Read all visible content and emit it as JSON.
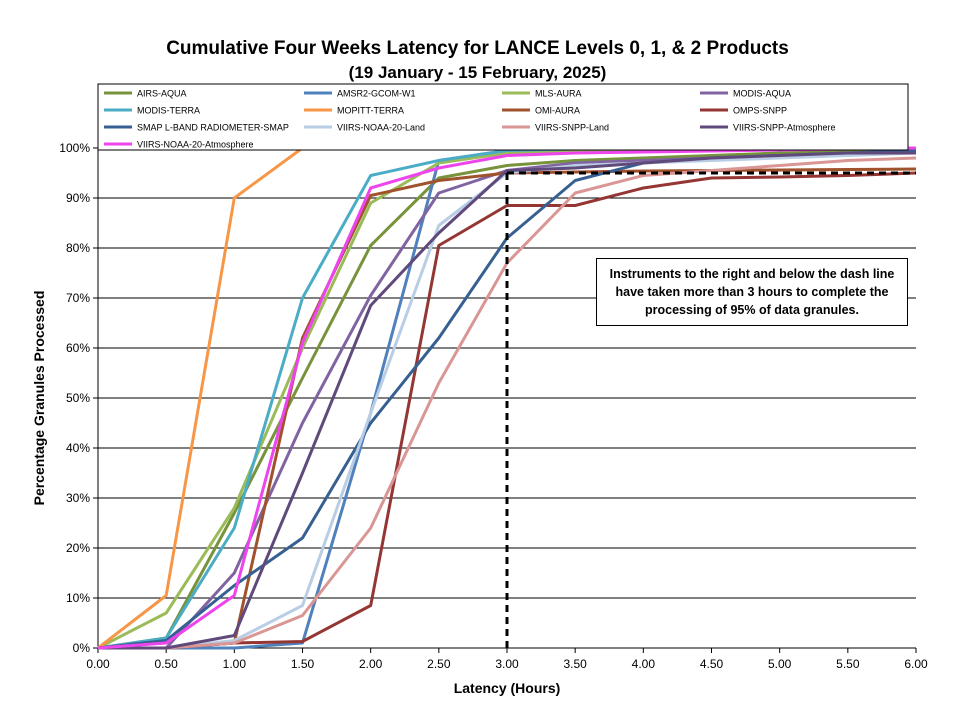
{
  "chart_data": {
    "type": "line",
    "title": "Cumulative Four Weeks Latency  for LANCE Levels 0, 1, & 2 Products",
    "subtitle": "(19  January   -  15  February,  2025)",
    "xlabel": "Latency (Hours)",
    "ylabel": "Percentage Granules Processed",
    "x": [
      0,
      0.5,
      1,
      1.5,
      2,
      2.5,
      3,
      3.5,
      4,
      4.5,
      5,
      5.5,
      6
    ],
    "xtick_labels": [
      "0.00",
      "0.50",
      "1.00",
      "1.50",
      "2.00",
      "2.50",
      "3.00",
      "3.50",
      "4.00",
      "4.50",
      "5.00",
      "5.50",
      "6.00"
    ],
    "ytick_labels": [
      "0%",
      "10%",
      "20%",
      "30%",
      "40%",
      "50%",
      "60%",
      "70%",
      "80%",
      "90%",
      "100%"
    ],
    "xlim": [
      0,
      6
    ],
    "ylim": [
      0,
      100
    ],
    "grid": "horizontal",
    "legend_position": "top",
    "annotation": "Instruments to the right and below the dash line have taken more than 3 hours to complete the processing of 95% of data granules.",
    "threshold": {
      "x": 3,
      "y": 95
    },
    "series": [
      {
        "name": "AIRS-AQUA",
        "color": "#77933c",
        "values": [
          0,
          2,
          27,
          54,
          80.5,
          94,
          96.5,
          97.5,
          98,
          98.5,
          99,
          99.3,
          99.6
        ]
      },
      {
        "name": "AMSR2-GCOM-W1",
        "color": "#4f81bd",
        "values": [
          0,
          0,
          0,
          1,
          47,
          97.5,
          99.5,
          99.8,
          99.9,
          100,
          100,
          100,
          100
        ]
      },
      {
        "name": "MLS-AURA",
        "color": "#9bbb59",
        "values": [
          0,
          7,
          28,
          60,
          89,
          97,
          99,
          99.5,
          99.7,
          99.8,
          99.9,
          100,
          100
        ]
      },
      {
        "name": "MODIS-AQUA",
        "color": "#8064a2",
        "values": [
          0,
          0,
          15,
          45,
          70.5,
          91,
          95.5,
          97,
          97.5,
          98,
          98.5,
          99,
          99
        ]
      },
      {
        "name": "MODIS-TERRA",
        "color": "#4bacc6",
        "values": [
          0,
          2,
          24,
          70,
          94.5,
          97.5,
          99.5,
          99.8,
          99.9,
          100,
          100,
          100,
          100
        ]
      },
      {
        "name": "MOPITT-TERRA",
        "color": "#f79646",
        "values": [
          0,
          10.5,
          90,
          100,
          100,
          100,
          100,
          100,
          100,
          100,
          100,
          100,
          100
        ]
      },
      {
        "name": "OMI-AURA",
        "color": "#a0522d",
        "values": [
          0,
          0,
          1,
          62,
          90.5,
          93.5,
          95,
          95.2,
          95.4,
          95.5,
          95.6,
          95.7,
          95.8
        ]
      },
      {
        "name": "OMPS-SNPP",
        "color": "#943634",
        "values": [
          0,
          0,
          1,
          1.3,
          8.5,
          80.5,
          88.5,
          88.5,
          92,
          94,
          94.2,
          94.5,
          95
        ]
      },
      {
        "name": "SMAP L-BAND RADIOMETER-SMAP",
        "color": "#376092",
        "values": [
          0,
          1.5,
          12.5,
          22,
          45,
          62,
          82,
          93.5,
          97,
          98,
          98.5,
          99,
          99.5
        ]
      },
      {
        "name": "VIIRS-NOAA-20-Land",
        "color": "#b9cde5",
        "values": [
          0,
          0,
          1.5,
          8.5,
          47,
          84.5,
          95,
          96.5,
          97,
          97.5,
          98,
          98.5,
          99
        ]
      },
      {
        "name": "VIIRS-SNPP-Land",
        "color": "#d99694",
        "values": [
          0,
          0,
          1,
          6.5,
          24,
          53,
          77,
          91,
          94.5,
          95.5,
          96.5,
          97.5,
          98
        ]
      },
      {
        "name": "VIIRS-SNPP-Atmosphere",
        "color": "#604a7b",
        "values": [
          0,
          0,
          2.5,
          35,
          68.5,
          83,
          95.5,
          96,
          97,
          98,
          98.5,
          99,
          99
        ]
      },
      {
        "name": "VIIRS-NOAA-20-Atmosphere",
        "color": "#ee44ee",
        "values": [
          0,
          1,
          10.5,
          61,
          92,
          96,
          98.5,
          99,
          99.2,
          99.4,
          99.6,
          99.8,
          100
        ]
      }
    ]
  }
}
